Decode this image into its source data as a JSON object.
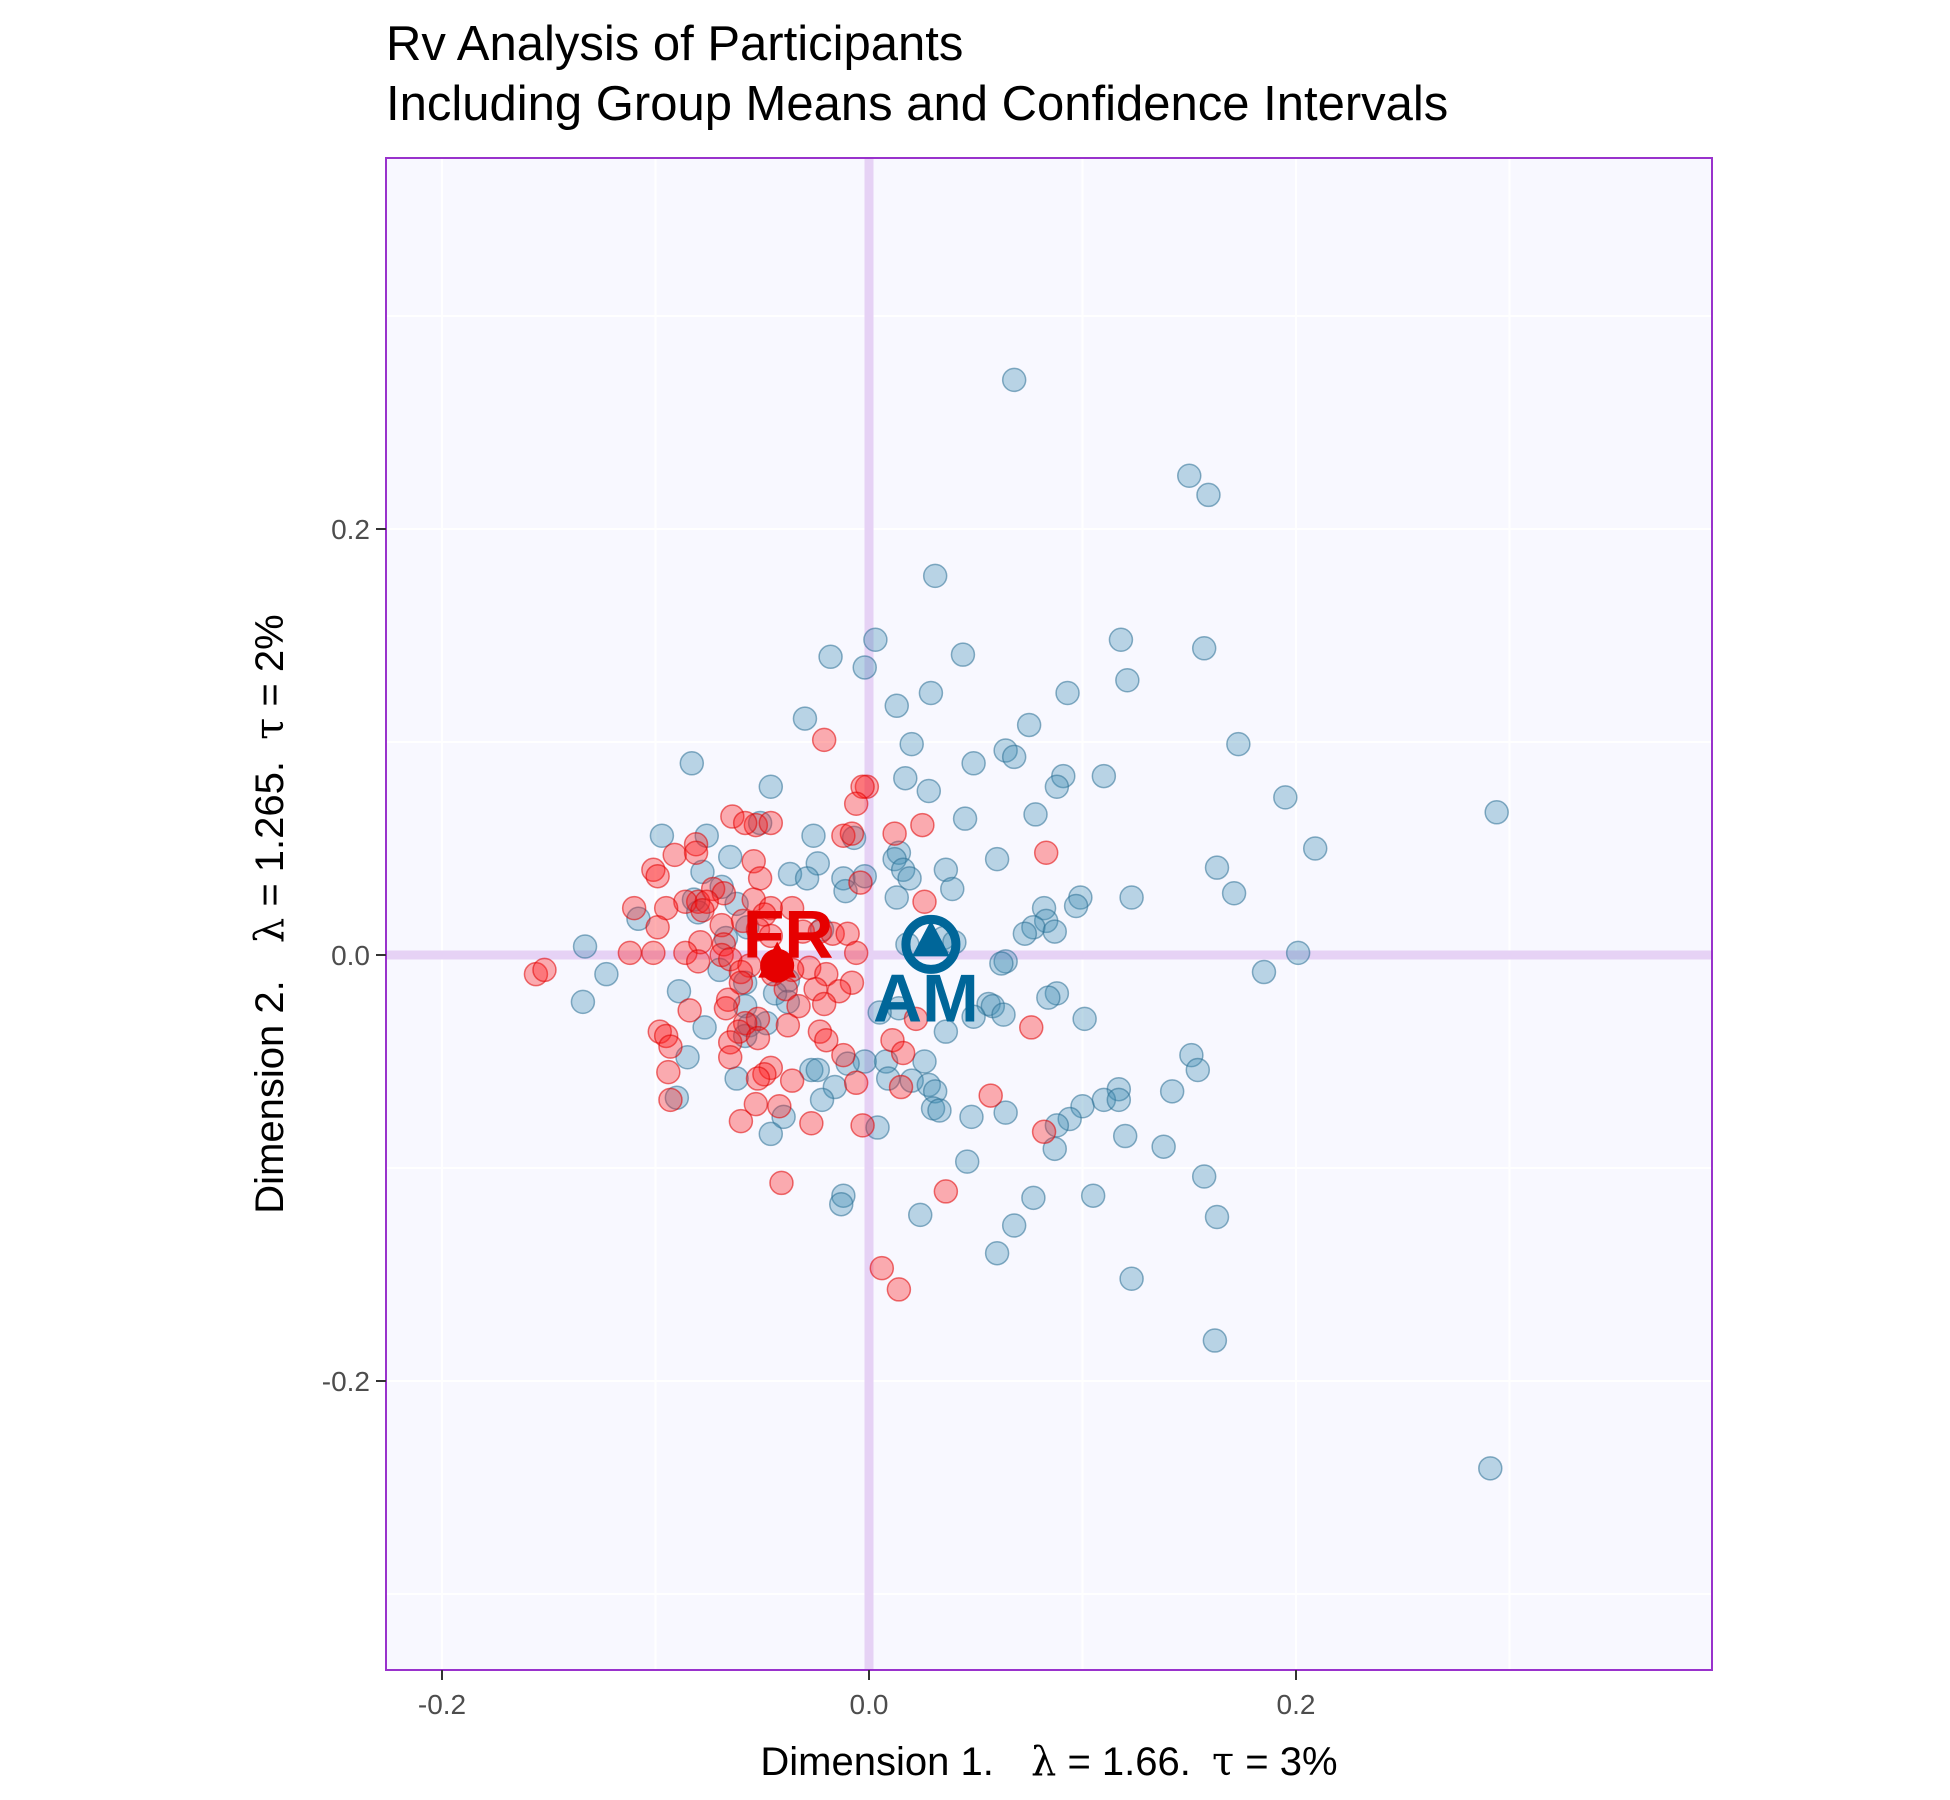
{
  "chart_data": {
    "type": "scatter",
    "title": [
      "Rv Analysis of Participants",
      "Including Group Means and Confidence Intervals"
    ],
    "xlabel": {
      "prefix": "Dimension 1.",
      "lambda_symbol": "λ",
      "lambda": "= 1.66.",
      "tau_symbol": "τ",
      "tau": "= 3%"
    },
    "ylabel": {
      "prefix": "Dimension 2.",
      "lambda_symbol": "λ",
      "lambda": "= 1.265.",
      "tau_symbol": "τ",
      "tau": "= 2%"
    },
    "xlim": [
      -0.2,
      0.4
    ],
    "ylim": [
      -0.335,
      0.375
    ],
    "x_ticks": [
      -0.2,
      0.0,
      0.2
    ],
    "x_tick_labels": [
      "-0.2",
      "0.0",
      "0.2"
    ],
    "y_ticks": [
      -0.2,
      0.0,
      0.2
    ],
    "y_tick_labels": [
      "-0.2",
      "0.0",
      "0.2"
    ],
    "grid": true,
    "legend": "none",
    "colors": {
      "panel_bg": "#f8f8ff",
      "panel_border": "#9932cc",
      "origin_lines": "#e6d2f5",
      "grid": "#ffffff",
      "AM": "#4290b5",
      "AM_mean": "#006699",
      "FR": "#ff1a1a",
      "FR_mean": "#e60000"
    },
    "series": [
      {
        "name": "AM",
        "points": [
          [
            0.068,
            0.27
          ],
          [
            0.15,
            0.225
          ],
          [
            0.159,
            0.216
          ],
          [
            0.031,
            0.178
          ],
          [
            0.003,
            0.148
          ],
          [
            -0.018,
            0.14
          ],
          [
            -0.002,
            0.135
          ],
          [
            0.044,
            0.141
          ],
          [
            0.118,
            0.148
          ],
          [
            0.157,
            0.144
          ],
          [
            0.121,
            0.129
          ],
          [
            0.029,
            0.123
          ],
          [
            0.093,
            0.123
          ],
          [
            0.013,
            0.117
          ],
          [
            -0.03,
            0.111
          ],
          [
            0.075,
            0.108
          ],
          [
            0.173,
            0.099
          ],
          [
            0.02,
            0.099
          ],
          [
            0.064,
            0.096
          ],
          [
            0.068,
            0.093
          ],
          [
            0.049,
            0.09
          ],
          [
            -0.083,
            0.09
          ],
          [
            0.091,
            0.084
          ],
          [
            0.11,
            0.084
          ],
          [
            0.017,
            0.083
          ],
          [
            0.088,
            0.079
          ],
          [
            -0.046,
            0.079
          ],
          [
            0.028,
            0.077
          ],
          [
            0.195,
            0.074
          ],
          [
            0.294,
            0.067
          ],
          [
            0.078,
            0.066
          ],
          [
            0.045,
            0.064
          ],
          [
            -0.051,
            0.062
          ],
          [
            -0.097,
            0.056
          ],
          [
            -0.076,
            0.056
          ],
          [
            -0.026,
            0.056
          ],
          [
            -0.007,
            0.055
          ],
          [
            0.209,
            0.05
          ],
          [
            0.014,
            0.048
          ],
          [
            0.06,
            0.045
          ],
          [
            -0.065,
            0.046
          ],
          [
            -0.024,
            0.043
          ],
          [
            0.012,
            0.045
          ],
          [
            0.016,
            0.04
          ],
          [
            0.036,
            0.04
          ],
          [
            0.163,
            0.041
          ],
          [
            -0.037,
            0.038
          ],
          [
            -0.078,
            0.039
          ],
          [
            -0.029,
            0.036
          ],
          [
            -0.012,
            0.036
          ],
          [
            -0.002,
            0.037
          ],
          [
            0.019,
            0.036
          ],
          [
            -0.069,
            0.032
          ],
          [
            -0.082,
            0.026
          ],
          [
            0.039,
            0.031
          ],
          [
            0.171,
            0.029
          ],
          [
            -0.011,
            0.03
          ],
          [
            0.013,
            0.027
          ],
          [
            0.099,
            0.027
          ],
          [
            0.123,
            0.027
          ],
          [
            -0.062,
            0.024
          ],
          [
            0.082,
            0.022
          ],
          [
            -0.08,
            0.02
          ],
          [
            0.097,
            0.023
          ],
          [
            -0.108,
            0.017
          ],
          [
            0.083,
            0.016
          ],
          [
            0.077,
            0.013
          ],
          [
            -0.057,
            0.013
          ],
          [
            -0.022,
            0.012
          ],
          [
            0.073,
            0.01
          ],
          [
            -0.067,
            0.008
          ],
          [
            0.035,
            0.008
          ],
          [
            0.04,
            0.006
          ],
          [
            -0.133,
            0.004
          ],
          [
            -0.123,
            -0.009
          ],
          [
            0.087,
            0.011
          ],
          [
            0.018,
            0.005
          ],
          [
            0.201,
            0.001
          ],
          [
            0.064,
            -0.003
          ],
          [
            0.062,
            -0.004
          ],
          [
            0.185,
            -0.008
          ],
          [
            -0.07,
            -0.007
          ],
          [
            -0.058,
            -0.013
          ],
          [
            -0.038,
            -0.012
          ],
          [
            -0.044,
            -0.018
          ],
          [
            -0.134,
            -0.022
          ],
          [
            -0.089,
            -0.017
          ],
          [
            -0.038,
            -0.022
          ],
          [
            0.088,
            -0.018
          ],
          [
            -0.058,
            -0.024
          ],
          [
            0.056,
            -0.023
          ],
          [
            0.058,
            -0.024
          ],
          [
            0.014,
            -0.025
          ],
          [
            0.005,
            -0.027
          ],
          [
            0.049,
            -0.029
          ],
          [
            0.084,
            -0.02
          ],
          [
            0.063,
            -0.028
          ],
          [
            0.101,
            -0.03
          ],
          [
            -0.056,
            -0.033
          ],
          [
            -0.077,
            -0.034
          ],
          [
            -0.058,
            -0.038
          ],
          [
            -0.048,
            -0.032
          ],
          [
            0.036,
            -0.036
          ],
          [
            -0.085,
            -0.048
          ],
          [
            0.151,
            -0.047
          ],
          [
            -0.002,
            -0.05
          ],
          [
            0.008,
            -0.05
          ],
          [
            -0.01,
            -0.051
          ],
          [
            0.026,
            -0.05
          ],
          [
            -0.027,
            -0.054
          ],
          [
            -0.024,
            -0.054
          ],
          [
            -0.062,
            -0.058
          ],
          [
            0.154,
            -0.054
          ],
          [
            0.009,
            -0.058
          ],
          [
            0.02,
            -0.059
          ],
          [
            0.028,
            -0.061
          ],
          [
            -0.016,
            -0.062
          ],
          [
            0.117,
            -0.063
          ],
          [
            0.031,
            -0.064
          ],
          [
            -0.022,
            -0.068
          ],
          [
            0.142,
            -0.064
          ],
          [
            0.11,
            -0.068
          ],
          [
            -0.09,
            -0.067
          ],
          [
            0.117,
            -0.068
          ],
          [
            0.03,
            -0.072
          ],
          [
            0.033,
            -0.073
          ],
          [
            0.1,
            -0.071
          ],
          [
            -0.04,
            -0.076
          ],
          [
            0.064,
            -0.074
          ],
          [
            0.048,
            -0.076
          ],
          [
            0.094,
            -0.077
          ],
          [
            0.088,
            -0.08
          ],
          [
            0.004,
            -0.081
          ],
          [
            -0.046,
            -0.084
          ],
          [
            0.12,
            -0.085
          ],
          [
            0.087,
            -0.091
          ],
          [
            0.138,
            -0.09
          ],
          [
            0.046,
            -0.097
          ],
          [
            0.157,
            -0.104
          ],
          [
            -0.012,
            -0.113
          ],
          [
            0.105,
            -0.113
          ],
          [
            -0.013,
            -0.117
          ],
          [
            0.077,
            -0.114
          ],
          [
            0.024,
            -0.122
          ],
          [
            0.163,
            -0.123
          ],
          [
            0.068,
            -0.127
          ],
          [
            0.06,
            -0.14
          ],
          [
            0.123,
            -0.152
          ],
          [
            0.162,
            -0.181
          ],
          [
            0.291,
            -0.241
          ]
        ]
      },
      {
        "name": "FR",
        "points": [
          [
            -0.021,
            0.101
          ],
          [
            -0.001,
            0.079
          ],
          [
            -0.003,
            0.079
          ],
          [
            -0.006,
            0.071
          ],
          [
            -0.064,
            0.065
          ],
          [
            -0.053,
            0.061
          ],
          [
            -0.058,
            0.062
          ],
          [
            -0.046,
            0.062
          ],
          [
            0.025,
            0.061
          ],
          [
            -0.012,
            0.056
          ],
          [
            -0.008,
            0.057
          ],
          [
            0.012,
            0.057
          ],
          [
            -0.081,
            0.052
          ],
          [
            0.083,
            0.048
          ],
          [
            -0.091,
            0.047
          ],
          [
            -0.081,
            0.048
          ],
          [
            -0.054,
            0.044
          ],
          [
            -0.101,
            0.04
          ],
          [
            -0.051,
            0.036
          ],
          [
            -0.099,
            0.037
          ],
          [
            -0.004,
            0.034
          ],
          [
            -0.073,
            0.031
          ],
          [
            -0.068,
            0.029
          ],
          [
            -0.054,
            0.026
          ],
          [
            -0.11,
            0.022
          ],
          [
            -0.08,
            0.025
          ],
          [
            -0.086,
            0.025
          ],
          [
            -0.095,
            0.022
          ],
          [
            -0.076,
            0.025
          ],
          [
            0.026,
            0.025
          ],
          [
            -0.036,
            0.022
          ],
          [
            -0.078,
            0.021
          ],
          [
            -0.046,
            0.022
          ],
          [
            -0.049,
            0.019
          ],
          [
            -0.059,
            0.016
          ],
          [
            -0.069,
            0.014
          ],
          [
            -0.099,
            0.013
          ],
          [
            -0.052,
            0.012
          ],
          [
            -0.031,
            0.011
          ],
          [
            -0.023,
            0.011
          ],
          [
            -0.017,
            0.01
          ],
          [
            -0.01,
            0.01
          ],
          [
            -0.046,
            0.009
          ],
          [
            -0.079,
            0.006
          ],
          [
            -0.068,
            0.005
          ],
          [
            -0.086,
            0.001
          ],
          [
            -0.069,
            0.0
          ],
          [
            -0.112,
            0.001
          ],
          [
            -0.101,
            0.001
          ],
          [
            -0.006,
            0.001
          ],
          [
            -0.065,
            -0.002
          ],
          [
            -0.08,
            -0.003
          ],
          [
            -0.056,
            -0.005
          ],
          [
            -0.028,
            -0.006
          ],
          [
            -0.036,
            -0.007
          ],
          [
            -0.06,
            -0.008
          ],
          [
            -0.156,
            -0.009
          ],
          [
            -0.152,
            -0.007
          ],
          [
            -0.045,
            -0.009
          ],
          [
            -0.02,
            -0.009
          ],
          [
            -0.06,
            -0.013
          ],
          [
            -0.008,
            -0.013
          ],
          [
            -0.039,
            -0.016
          ],
          [
            -0.014,
            -0.017
          ],
          [
            -0.025,
            -0.016
          ],
          [
            -0.066,
            -0.021
          ],
          [
            -0.021,
            -0.023
          ],
          [
            -0.033,
            -0.024
          ],
          [
            -0.067,
            -0.025
          ],
          [
            -0.084,
            -0.026
          ],
          [
            0.022,
            -0.03
          ],
          [
            -0.052,
            -0.03
          ],
          [
            -0.058,
            -0.032
          ],
          [
            -0.038,
            -0.033
          ],
          [
            -0.023,
            -0.036
          ],
          [
            0.076,
            -0.034
          ],
          [
            -0.098,
            -0.036
          ],
          [
            -0.061,
            -0.036
          ],
          [
            -0.095,
            -0.038
          ],
          [
            -0.052,
            -0.039
          ],
          [
            -0.02,
            -0.04
          ],
          [
            0.011,
            -0.04
          ],
          [
            -0.065,
            -0.041
          ],
          [
            -0.093,
            -0.043
          ],
          [
            -0.012,
            -0.047
          ],
          [
            -0.065,
            -0.048
          ],
          [
            0.016,
            -0.046
          ],
          [
            -0.046,
            -0.053
          ],
          [
            -0.094,
            -0.055
          ],
          [
            -0.049,
            -0.056
          ],
          [
            -0.052,
            -0.058
          ],
          [
            -0.036,
            -0.059
          ],
          [
            -0.006,
            -0.06
          ],
          [
            0.015,
            -0.062
          ],
          [
            0.057,
            -0.066
          ],
          [
            -0.093,
            -0.068
          ],
          [
            -0.053,
            -0.07
          ],
          [
            -0.042,
            -0.071
          ],
          [
            -0.06,
            -0.078
          ],
          [
            -0.027,
            -0.079
          ],
          [
            -0.003,
            -0.08
          ],
          [
            0.082,
            -0.083
          ],
          [
            -0.041,
            -0.107
          ],
          [
            0.036,
            -0.111
          ],
          [
            0.006,
            -0.147
          ],
          [
            0.014,
            -0.157
          ]
        ]
      }
    ],
    "group_means": [
      {
        "name": "AM",
        "label": "AM",
        "x": 0.029,
        "y": 0.005
      },
      {
        "name": "FR",
        "label": "FR",
        "x": -0.043,
        "y": -0.005
      }
    ]
  }
}
